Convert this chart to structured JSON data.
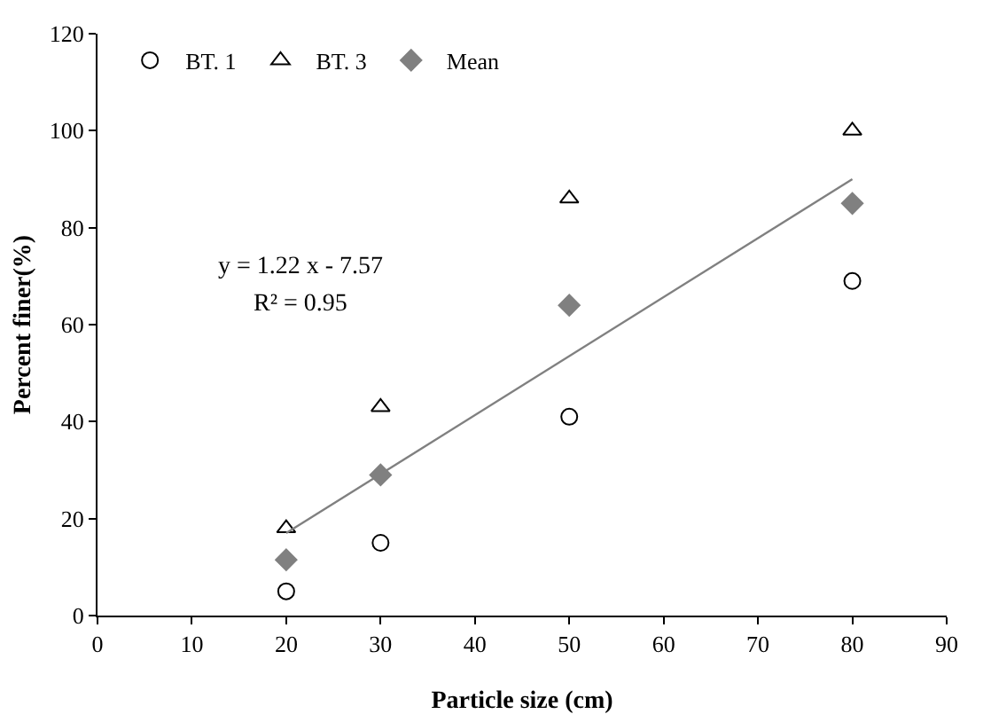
{
  "chart_data": {
    "type": "scatter",
    "xlabel": "Particle size (cm)",
    "ylabel": "Percent finer(%)",
    "xlim": [
      0,
      90
    ],
    "xticks": [
      0,
      10,
      20,
      30,
      40,
      50,
      60,
      70,
      80,
      90
    ],
    "ylim": [
      0,
      120
    ],
    "yticks": [
      0,
      20,
      40,
      60,
      80,
      100,
      120
    ],
    "grid": false,
    "legend": "top left",
    "annotations": [
      "y = 1.22 x - 7.57",
      "R² = 0.95"
    ],
    "series": [
      {
        "name": "BT. 1",
        "marker": "circle",
        "color": "#000000",
        "x": [
          20,
          30,
          50,
          80
        ],
        "values": [
          5,
          15,
          41,
          69
        ]
      },
      {
        "name": "BT. 3",
        "marker": "triangle",
        "color": "#000000",
        "x": [
          20,
          30,
          50,
          80
        ],
        "values": [
          18,
          43,
          86,
          100
        ]
      },
      {
        "name": "Mean",
        "marker": "diamond",
        "color": "#808080",
        "x": [
          20,
          30,
          50,
          80
        ],
        "values": [
          11.5,
          29,
          64,
          85
        ]
      },
      {
        "type": "line",
        "marker": "none",
        "color": "#808080",
        "x": [
          20,
          80
        ],
        "values": [
          17,
          90
        ]
      }
    ]
  }
}
